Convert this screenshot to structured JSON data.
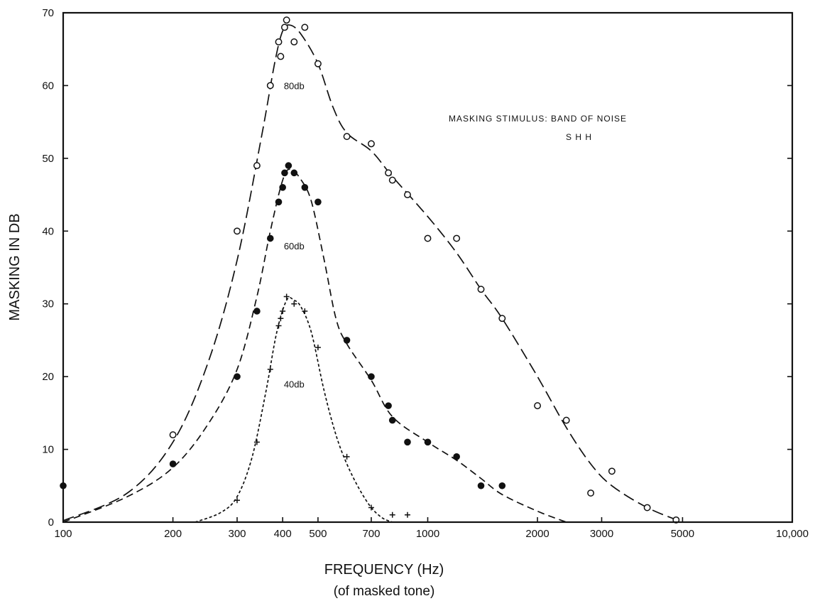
{
  "chart_data": {
    "type": "scatter",
    "title": "",
    "xlabel": "FREQUENCY (Hz)",
    "xlabel_sub": "(of masked tone)",
    "ylabel": "MASKING IN DB",
    "xscale": "log",
    "xlim": [
      100,
      10000
    ],
    "ylim": [
      0,
      70
    ],
    "grid": false,
    "x_ticks": [
      100,
      200,
      300,
      400,
      500,
      700,
      1000,
      2000,
      3000,
      5000,
      10000
    ],
    "x_tick_labels": [
      "100",
      "200",
      "300",
      "400",
      "500",
      "700",
      "1000",
      "2000",
      "3000",
      "5000",
      "10,000"
    ],
    "y_ticks": [
      0,
      10,
      20,
      30,
      40,
      50,
      60,
      70
    ],
    "y_tick_labels": [
      "0",
      "10",
      "20",
      "30",
      "40",
      "50",
      "60",
      "70"
    ],
    "annotations": [
      "MASKING STIMULUS: BAND OF NOISE",
      "S  H H"
    ],
    "series": [
      {
        "name": "80db",
        "marker": "open-circle",
        "line": "long-dash",
        "points": [
          [
            200,
            12
          ],
          [
            300,
            40
          ],
          [
            340,
            49
          ],
          [
            370,
            60
          ],
          [
            390,
            66
          ],
          [
            395,
            64
          ],
          [
            405,
            68
          ],
          [
            410,
            69
          ],
          [
            430,
            66
          ],
          [
            460,
            68
          ],
          [
            500,
            63
          ],
          [
            600,
            53
          ],
          [
            700,
            52
          ],
          [
            780,
            48
          ],
          [
            800,
            47
          ],
          [
            880,
            45
          ],
          [
            1000,
            39
          ],
          [
            1200,
            39
          ],
          [
            1400,
            32
          ],
          [
            1600,
            28
          ],
          [
            2000,
            16
          ],
          [
            2400,
            14
          ],
          [
            2800,
            4
          ],
          [
            3200,
            7
          ],
          [
            4000,
            2
          ],
          [
            4800,
            0.3
          ]
        ],
        "curve": [
          [
            100,
            0.2
          ],
          [
            150,
            4
          ],
          [
            200,
            11
          ],
          [
            250,
            22
          ],
          [
            300,
            36
          ],
          [
            350,
            53
          ],
          [
            380,
            63
          ],
          [
            400,
            67.5
          ],
          [
            420,
            68.3
          ],
          [
            450,
            67
          ],
          [
            500,
            63
          ],
          [
            550,
            57
          ],
          [
            600,
            53.5
          ],
          [
            700,
            51
          ],
          [
            800,
            47.5
          ],
          [
            1000,
            42
          ],
          [
            1200,
            37
          ],
          [
            1400,
            32
          ],
          [
            1600,
            28
          ],
          [
            2000,
            20
          ],
          [
            2400,
            13
          ],
          [
            2800,
            8
          ],
          [
            3200,
            5
          ],
          [
            4000,
            2
          ],
          [
            5000,
            0
          ]
        ]
      },
      {
        "name": "60db",
        "marker": "filled-circle",
        "line": "dash",
        "points": [
          [
            100,
            5
          ],
          [
            200,
            8
          ],
          [
            300,
            20
          ],
          [
            340,
            29
          ],
          [
            370,
            39
          ],
          [
            390,
            44
          ],
          [
            400,
            46
          ],
          [
            405,
            48
          ],
          [
            415,
            49
          ],
          [
            430,
            48
          ],
          [
            460,
            46
          ],
          [
            500,
            44
          ],
          [
            600,
            25
          ],
          [
            700,
            20
          ],
          [
            780,
            16
          ],
          [
            800,
            14
          ],
          [
            880,
            11
          ],
          [
            1000,
            11
          ],
          [
            1200,
            9
          ],
          [
            1400,
            5
          ],
          [
            1600,
            5
          ]
        ],
        "curve": [
          [
            100,
            0
          ],
          [
            150,
            3.5
          ],
          [
            200,
            7.5
          ],
          [
            250,
            13.5
          ],
          [
            300,
            21
          ],
          [
            340,
            31
          ],
          [
            370,
            40
          ],
          [
            400,
            47
          ],
          [
            420,
            48.5
          ],
          [
            450,
            47
          ],
          [
            480,
            44
          ],
          [
            520,
            36
          ],
          [
            560,
            28
          ],
          [
            600,
            24.5
          ],
          [
            700,
            19.5
          ],
          [
            800,
            14.5
          ],
          [
            1000,
            11
          ],
          [
            1200,
            8.5
          ],
          [
            1400,
            6
          ],
          [
            1600,
            3.8
          ],
          [
            2000,
            1.5
          ],
          [
            2400,
            0
          ]
        ]
      },
      {
        "name": "40db",
        "marker": "plus",
        "line": "short-dash",
        "points": [
          [
            300,
            3
          ],
          [
            340,
            11
          ],
          [
            370,
            21
          ],
          [
            390,
            27
          ],
          [
            395,
            28
          ],
          [
            400,
            29
          ],
          [
            410,
            31
          ],
          [
            430,
            30
          ],
          [
            460,
            29
          ],
          [
            500,
            24
          ],
          [
            600,
            9
          ],
          [
            700,
            2
          ],
          [
            800,
            1
          ],
          [
            880,
            1
          ]
        ],
        "curve": [
          [
            230,
            0
          ],
          [
            270,
            1.3
          ],
          [
            300,
            3.5
          ],
          [
            330,
            9
          ],
          [
            360,
            18
          ],
          [
            385,
            26
          ],
          [
            410,
            30.5
          ],
          [
            430,
            30.5
          ],
          [
            450,
            29.5
          ],
          [
            480,
            26
          ],
          [
            520,
            18
          ],
          [
            560,
            12
          ],
          [
            600,
            8
          ],
          [
            650,
            4.5
          ],
          [
            700,
            2
          ],
          [
            750,
            0.6
          ],
          [
            800,
            0
          ]
        ]
      }
    ],
    "curve_labels": [
      {
        "text": "80db",
        "x": 430,
        "y": 59.5
      },
      {
        "text": "60db",
        "x": 430,
        "y": 37.5
      },
      {
        "text": "40db",
        "x": 430,
        "y": 18.5
      }
    ]
  }
}
